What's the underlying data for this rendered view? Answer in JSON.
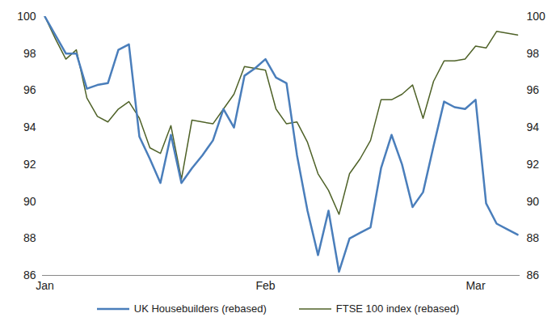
{
  "chart_data": {
    "type": "line",
    "categories": [
      "Jan",
      null,
      null,
      null,
      null,
      null,
      null,
      null,
      null,
      null,
      null,
      null,
      null,
      null,
      null,
      null,
      null,
      null,
      null,
      null,
      null,
      "Feb",
      null,
      null,
      null,
      null,
      null,
      null,
      null,
      null,
      null,
      null,
      null,
      null,
      null,
      null,
      null,
      null,
      null,
      null,
      null,
      "Mar",
      null,
      null,
      null,
      null
    ],
    "series": [
      {
        "name": "UK Housebuilders (rebased)",
        "color": "#4a7ebb",
        "values": [
          100,
          99,
          98.0,
          98.0,
          96.1,
          96.3,
          96.4,
          98.2,
          98.5,
          93.5,
          92.3,
          91.0,
          93.6,
          91.0,
          91.8,
          92.5,
          93.3,
          95.0,
          94.0,
          96.8,
          97.2,
          97.7,
          96.7,
          96.4,
          92.5,
          89.5,
          87.1,
          89.5,
          86.2,
          88.0,
          88.3,
          88.6,
          91.8,
          93.6,
          92.0,
          89.7,
          90.5,
          93.0,
          95.4,
          95.1,
          95.0,
          95.5,
          89.9,
          88.8,
          88.5,
          88.2
        ]
      },
      {
        "name": "FTSE 100 index (rebased)",
        "color": "#4f6228",
        "values": [
          100,
          98.8,
          97.7,
          98.2,
          95.6,
          94.6,
          94.3,
          95.0,
          95.4,
          94.5,
          92.9,
          92.6,
          94.1,
          91.2,
          94.4,
          94.3,
          94.2,
          95.0,
          95.8,
          97.3,
          97.2,
          97.1,
          95.0,
          94.2,
          94.3,
          93.2,
          91.5,
          90.6,
          89.3,
          91.5,
          92.3,
          93.3,
          95.5,
          95.5,
          95.8,
          96.3,
          94.5,
          96.5,
          97.6,
          97.6,
          97.7,
          98.4,
          98.3,
          99.2,
          99.1,
          99.0
        ]
      }
    ],
    "ylim": [
      86,
      100
    ],
    "yticks": [
      86,
      88,
      90,
      92,
      94,
      96,
      98,
      100
    ],
    "legend": "bottom",
    "grid": false
  }
}
